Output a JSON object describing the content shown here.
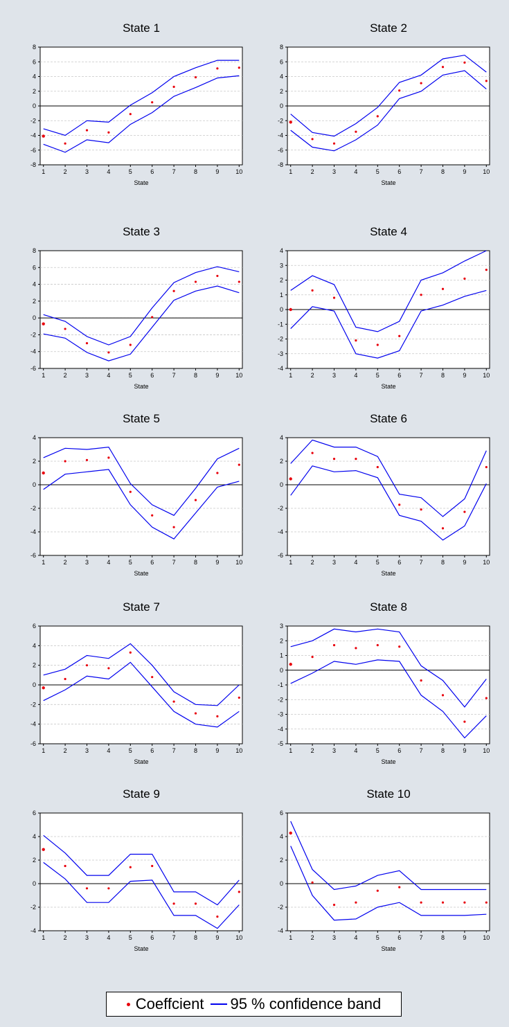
{
  "colors": {
    "background": "#dfe4ea",
    "plot_bg": "#ffffff",
    "band": "#0000ee",
    "coef": "#e8000b",
    "grid": "#c8c8c8"
  },
  "legend": {
    "coef_label": "Coeffcient",
    "band_label": "95 % confidence band"
  },
  "chart_data": [
    {
      "type": "line",
      "title": "State 1",
      "xlabel": "State",
      "x": [
        1,
        2,
        3,
        4,
        5,
        6,
        7,
        8,
        9,
        10
      ],
      "ylim": [
        -8,
        8
      ],
      "yticks": [
        -8,
        -6,
        -4,
        -2,
        0,
        2,
        4,
        6,
        8
      ],
      "coefficient": [
        -4.1,
        -5.1,
        -3.3,
        -3.6,
        -1.1,
        0.5,
        2.6,
        3.9,
        5.1,
        5.2
      ],
      "upper": [
        -3.1,
        -4.0,
        -2.0,
        -2.2,
        0.1,
        1.8,
        4.0,
        5.2,
        6.2,
        6.2
      ],
      "lower": [
        -5.2,
        -6.3,
        -4.6,
        -5.0,
        -2.5,
        -0.9,
        1.3,
        2.5,
        3.8,
        4.1
      ]
    },
    {
      "type": "line",
      "title": "State 2",
      "xlabel": "State",
      "x": [
        1,
        2,
        3,
        4,
        5,
        6,
        7,
        8,
        9,
        10
      ],
      "ylim": [
        -8,
        8
      ],
      "yticks": [
        -8,
        -6,
        -4,
        -2,
        0,
        2,
        4,
        6,
        8
      ],
      "coefficient": [
        -2.2,
        -4.5,
        -5.1,
        -3.5,
        -1.4,
        2.1,
        3.1,
        5.3,
        5.9,
        3.4
      ],
      "upper": [
        -1.1,
        -3.6,
        -4.1,
        -2.4,
        -0.2,
        3.2,
        4.2,
        6.4,
        6.9,
        4.6
      ],
      "lower": [
        -3.3,
        -5.6,
        -6.1,
        -4.6,
        -2.6,
        1.0,
        2.0,
        4.2,
        4.8,
        2.3
      ]
    },
    {
      "type": "line",
      "title": "State 3",
      "xlabel": "State",
      "x": [
        1,
        2,
        3,
        4,
        5,
        6,
        7,
        8,
        9,
        10
      ],
      "ylim": [
        -6,
        8
      ],
      "yticks": [
        -6,
        -4,
        -2,
        0,
        2,
        4,
        6,
        8
      ],
      "coefficient": [
        -0.7,
        -1.3,
        -3.0,
        -4.1,
        -3.2,
        0.1,
        3.2,
        4.3,
        5.0,
        4.3
      ],
      "upper": [
        0.4,
        -0.4,
        -2.2,
        -3.2,
        -2.2,
        1.2,
        4.2,
        5.4,
        6.1,
        5.5
      ],
      "lower": [
        -1.9,
        -2.4,
        -4.1,
        -5.1,
        -4.3,
        -1.1,
        2.1,
        3.2,
        3.8,
        3.0
      ]
    },
    {
      "type": "line",
      "title": "State 4",
      "xlabel": "State",
      "x": [
        1,
        2,
        3,
        4,
        5,
        6,
        7,
        8,
        9,
        10
      ],
      "ylim": [
        -4,
        4
      ],
      "yticks": [
        -4,
        -3,
        -2,
        -1,
        0,
        1,
        2,
        3,
        4
      ],
      "coefficient": [
        0.0,
        1.3,
        0.8,
        -2.1,
        -2.4,
        -1.8,
        1.0,
        1.4,
        2.1,
        2.7
      ],
      "upper": [
        1.3,
        2.3,
        1.7,
        -1.2,
        -1.5,
        -0.8,
        2.0,
        2.5,
        3.3,
        4.0
      ],
      "lower": [
        -1.3,
        0.2,
        -0.1,
        -3.0,
        -3.3,
        -2.8,
        -0.1,
        0.3,
        0.9,
        1.3
      ]
    },
    {
      "type": "line",
      "title": "State 5",
      "xlabel": "State",
      "x": [
        1,
        2,
        3,
        4,
        5,
        6,
        7,
        8,
        9,
        10
      ],
      "ylim": [
        -6,
        4
      ],
      "yticks": [
        -6,
        -4,
        -2,
        0,
        2,
        4
      ],
      "coefficient": [
        1.0,
        2.0,
        2.1,
        2.3,
        -0.6,
        -2.6,
        -3.6,
        -1.3,
        1.0,
        1.7
      ],
      "upper": [
        2.3,
        3.1,
        3.0,
        3.2,
        0.1,
        -1.7,
        -2.6,
        -0.3,
        2.2,
        3.1
      ],
      "lower": [
        -0.4,
        0.9,
        1.1,
        1.3,
        -1.7,
        -3.6,
        -4.6,
        -2.4,
        -0.2,
        0.3
      ]
    },
    {
      "type": "line",
      "title": "State 6",
      "xlabel": "State",
      "x": [
        1,
        2,
        3,
        4,
        5,
        6,
        7,
        8,
        9,
        10
      ],
      "ylim": [
        -6,
        4
      ],
      "yticks": [
        -6,
        -4,
        -2,
        0,
        2,
        4
      ],
      "coefficient": [
        0.5,
        2.7,
        2.2,
        2.2,
        1.5,
        -1.7,
        -2.1,
        -3.7,
        -2.3,
        1.5
      ],
      "upper": [
        1.8,
        3.8,
        3.2,
        3.2,
        2.4,
        -0.8,
        -1.1,
        -2.7,
        -1.2,
        2.9
      ],
      "lower": [
        -0.9,
        1.6,
        1.1,
        1.2,
        0.6,
        -2.6,
        -3.1,
        -4.7,
        -3.5,
        0.1
      ]
    },
    {
      "type": "line",
      "title": "State 7",
      "xlabel": "State",
      "x": [
        1,
        2,
        3,
        4,
        5,
        6,
        7,
        8,
        9,
        10
      ],
      "ylim": [
        -6,
        6
      ],
      "yticks": [
        -6,
        -4,
        -2,
        0,
        2,
        4,
        6
      ],
      "coefficient": [
        -0.3,
        0.6,
        2.0,
        1.7,
        3.3,
        0.8,
        -1.7,
        -2.9,
        -3.2,
        -1.3
      ],
      "upper": [
        1.0,
        1.6,
        3.0,
        2.7,
        4.2,
        2.0,
        -0.7,
        -2.0,
        -2.1,
        0.0
      ],
      "lower": [
        -1.6,
        -0.5,
        0.9,
        0.6,
        2.3,
        -0.2,
        -2.7,
        -4.0,
        -4.3,
        -2.7
      ]
    },
    {
      "type": "line",
      "title": "State 8",
      "xlabel": "State",
      "x": [
        1,
        2,
        3,
        4,
        5,
        6,
        7,
        8,
        9,
        10
      ],
      "ylim": [
        -5,
        3
      ],
      "yticks": [
        -5,
        -4,
        -3,
        -2,
        -1,
        0,
        1,
        2,
        3
      ],
      "coefficient": [
        0.4,
        0.9,
        1.7,
        1.5,
        1.7,
        1.6,
        -0.7,
        -1.7,
        -3.5,
        -1.9
      ],
      "upper": [
        1.6,
        2.0,
        2.8,
        2.6,
        2.8,
        2.6,
        0.3,
        -0.7,
        -2.5,
        -0.6
      ],
      "lower": [
        -0.9,
        -0.2,
        0.6,
        0.4,
        0.7,
        0.6,
        -1.7,
        -2.8,
        -4.6,
        -3.1
      ]
    },
    {
      "type": "line",
      "title": "State 9",
      "xlabel": "State",
      "x": [
        1,
        2,
        3,
        4,
        5,
        6,
        7,
        8,
        9,
        10
      ],
      "ylim": [
        -4,
        6
      ],
      "yticks": [
        -4,
        -2,
        0,
        2,
        4,
        6
      ],
      "coefficient": [
        2.9,
        1.5,
        -0.4,
        -0.4,
        1.4,
        1.5,
        -1.7,
        -1.7,
        -2.8,
        -0.7
      ],
      "upper": [
        4.1,
        2.6,
        0.7,
        0.7,
        2.5,
        2.5,
        -0.7,
        -0.7,
        -1.8,
        0.3
      ],
      "lower": [
        1.8,
        0.4,
        -1.6,
        -1.6,
        0.2,
        0.3,
        -2.7,
        -2.7,
        -3.8,
        -1.8
      ]
    },
    {
      "type": "line",
      "title": "State 10",
      "xlabel": "State",
      "x": [
        1,
        2,
        3,
        4,
        5,
        6,
        7,
        8,
        9,
        10
      ],
      "ylim": [
        -4,
        6
      ],
      "yticks": [
        -4,
        -2,
        0,
        2,
        4,
        6
      ],
      "coefficient": [
        4.3,
        0.1,
        -1.8,
        -1.6,
        -0.6,
        -0.3,
        -1.6,
        -1.6,
        -1.6,
        -1.6
      ],
      "upper": [
        5.3,
        1.2,
        -0.5,
        -0.2,
        0.7,
        1.1,
        -0.5,
        -0.5,
        -0.5,
        -0.5
      ],
      "lower": [
        3.2,
        -1.0,
        -3.1,
        -3.0,
        -2.0,
        -1.6,
        -2.7,
        -2.7,
        -2.7,
        -2.6
      ]
    }
  ]
}
